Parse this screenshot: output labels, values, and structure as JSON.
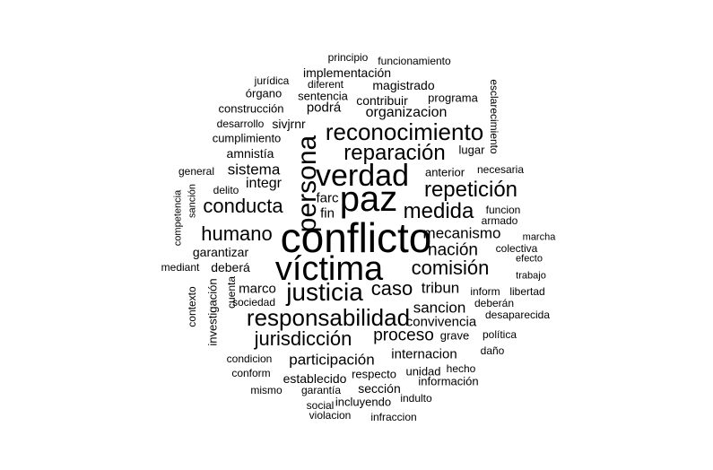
{
  "word_cloud": {
    "text_color": "#000000",
    "background_color": "#ffffff",
    "words": [
      "conflicto",
      "víctima",
      "paz",
      "verdad",
      "persona",
      "justicia",
      "responsabilidad",
      "reconocimiento",
      "reparación",
      "repetición",
      "medida",
      "comisión",
      "conducta",
      "jurisdicción",
      "caso",
      "humano",
      "mecanismo",
      "nación",
      "proceso",
      "tribun",
      "sancion",
      "convivencia",
      "participación",
      "sistema",
      "integr",
      "amnistía",
      "organizacion",
      "podrá",
      "marco",
      "garantizar",
      "deberá",
      "establecido",
      "sección",
      "internacion",
      "contribuir",
      "sivjrnr",
      "implementación",
      "magistrado",
      "programa",
      "sentencia",
      "órgano",
      "jurídica",
      "diferent",
      "construcción",
      "desarrollo",
      "cumplimiento",
      "general",
      "delito",
      "farc",
      "fin",
      "anterior",
      "necesaria",
      "lugar",
      "funcion",
      "armado",
      "colectiva",
      "marcha",
      "efecto",
      "trabajo",
      "libertad",
      "inform",
      "deberán",
      "desaparecida",
      "política",
      "daño",
      "grave",
      "hecho",
      "unidad",
      "respecto",
      "información",
      "incluyendo",
      "indulto",
      "garantía",
      "mismo",
      "conform",
      "condicion",
      "social",
      "violacion",
      "infraccion",
      "principio",
      "funcionamiento",
      "esclarecimiento",
      "competencia",
      "sanción",
      "mediant",
      "contexto",
      "investigación",
      "sociedad",
      "cuenta"
    ]
  }
}
